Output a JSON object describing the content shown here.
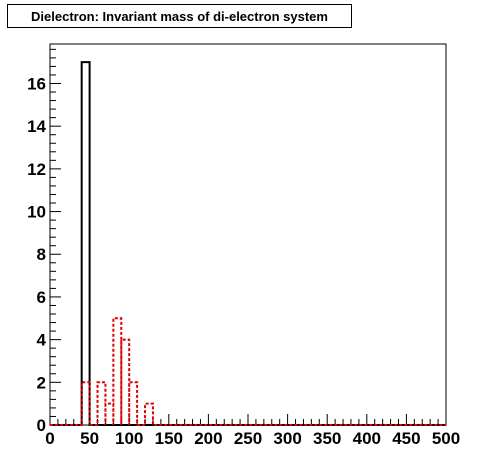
{
  "chart_data": {
    "type": "bar",
    "title": "Dielectron: Invariant mass of di-electron system",
    "xlabel": "",
    "ylabel": "",
    "xlim": [
      0,
      500
    ],
    "ylim": [
      0,
      17.85
    ],
    "bin_width": 10,
    "grid": false,
    "x_ticks": [
      "0",
      "50",
      "100",
      "150",
      "200",
      "250",
      "300",
      "350",
      "400",
      "450",
      "500"
    ],
    "y_ticks": [
      "0",
      "2",
      "4",
      "6",
      "8",
      "10",
      "12",
      "14",
      "16"
    ],
    "series": [
      {
        "style": "solid",
        "color": "#000000",
        "bins": [
          {
            "x_low": 40,
            "x_high": 50,
            "count": 17
          }
        ]
      },
      {
        "style": "dashed",
        "color": "#dd0000",
        "bins": [
          {
            "x_low": 40,
            "x_high": 50,
            "count": 2
          },
          {
            "x_low": 50,
            "x_high": 60,
            "count": 0
          },
          {
            "x_low": 60,
            "x_high": 70,
            "count": 2
          },
          {
            "x_low": 70,
            "x_high": 80,
            "count": 1
          },
          {
            "x_low": 80,
            "x_high": 90,
            "count": 5
          },
          {
            "x_low": 90,
            "x_high": 100,
            "count": 4
          },
          {
            "x_low": 100,
            "x_high": 110,
            "count": 2
          },
          {
            "x_low": 110,
            "x_high": 120,
            "count": 0
          },
          {
            "x_low": 120,
            "x_high": 130,
            "count": 1
          }
        ]
      }
    ]
  }
}
